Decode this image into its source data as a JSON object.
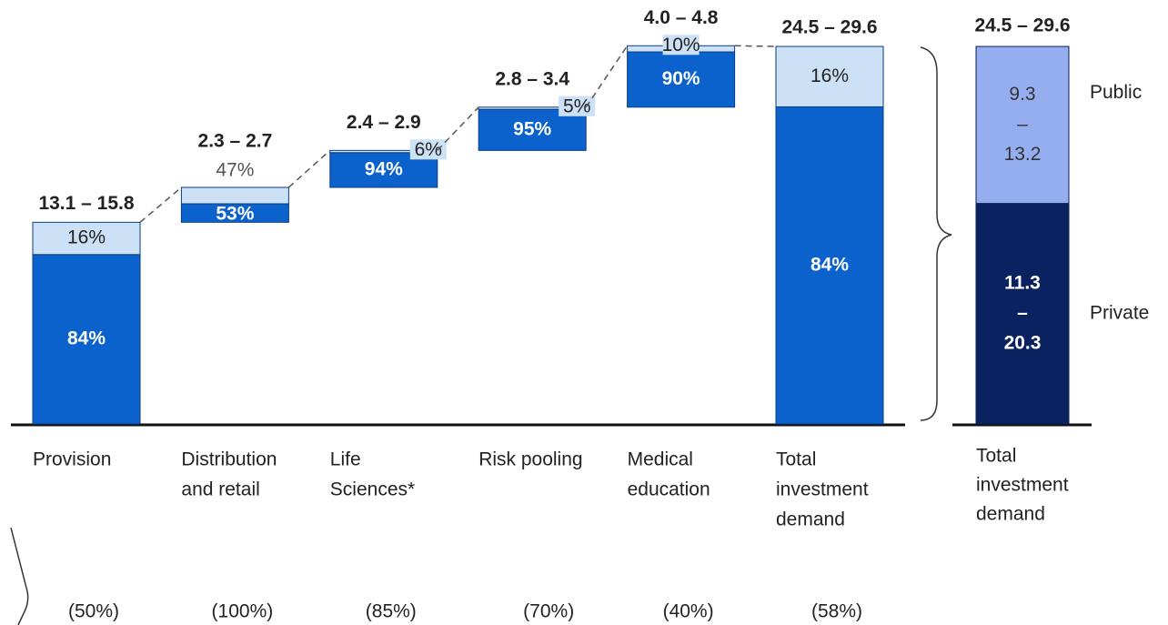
{
  "chart_data": [
    {
      "type": "waterfall",
      "categories": [
        [
          "Provision"
        ],
        [
          "Distribution",
          "and retail"
        ],
        [
          "Life",
          "Sciences*"
        ],
        [
          "Risk pooling"
        ],
        [
          "Medical",
          "education"
        ],
        [
          "Total",
          "investment",
          "demand"
        ]
      ],
      "ranges": [
        {
          "low": 13.1,
          "high": 15.8
        },
        {
          "low": 2.3,
          "high": 2.7
        },
        {
          "low": 2.4,
          "high": 2.9
        },
        {
          "low": 2.8,
          "high": 3.4
        },
        {
          "low": 4.0,
          "high": 4.8
        },
        {
          "low": 24.5,
          "high": 29.6
        }
      ],
      "range_labels": [
        "13.1 – 15.8",
        "2.3 – 2.7",
        "2.4 – 2.9",
        "2.8 – 3.4",
        "4.0 – 4.8",
        "24.5 – 29.6"
      ],
      "private_share": {
        "color": "#0b62cc",
        "values": [
          84,
          53,
          94,
          95,
          90,
          84
        ],
        "value_labels": [
          "84%",
          "53%",
          "94%",
          "95%",
          "90%",
          "84%"
        ]
      },
      "public_share": {
        "color": "#cce0f6",
        "values": [
          16,
          47,
          6,
          5,
          10,
          16
        ],
        "value_labels": [
          "16%",
          "47%",
          "6%",
          "5%",
          "10%",
          "16%"
        ]
      },
      "notes": {
        "values": [
          50,
          100,
          85,
          70,
          40,
          58
        ],
        "value_labels": [
          "(50%)",
          "(100%)",
          "(85%)",
          "(70%)",
          "(40%)",
          "(58%)"
        ]
      }
    },
    {
      "type": "stacked_bar",
      "category": [
        "Total",
        "investment",
        "demand"
      ],
      "total_label": "24.5 – 29.6",
      "series": [
        {
          "name": "Private",
          "color": "#0b2260",
          "low": 11.3,
          "high": 20.3,
          "value_labels": [
            "11.3",
            "–",
            "20.3"
          ]
        },
        {
          "name": "Public",
          "color": "#94aef0",
          "low": 9.3,
          "high": 13.2,
          "value_labels": [
            "9.3",
            "–",
            "13.2"
          ]
        }
      ]
    }
  ]
}
